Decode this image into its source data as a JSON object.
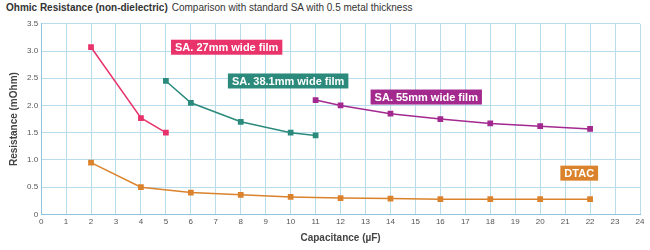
{
  "chart_data": {
    "type": "line",
    "title": "Ohmic Resistance (non-dielectric)",
    "subtitle": "Comparison with standard SA with 0.5 metal thickness",
    "x_label": "Capacitance (µF)",
    "y_label": "Resistance (mOhm)",
    "xlim": [
      0,
      24
    ],
    "xticks": [
      0,
      1,
      2,
      3,
      4,
      5,
      6,
      7,
      8,
      9,
      10,
      11,
      12,
      13,
      14,
      15,
      16,
      17,
      18,
      19,
      20,
      21,
      22,
      23,
      24
    ],
    "ylim": [
      0,
      3.5
    ],
    "yticks": [
      0,
      {
        "value": 0.5,
        "label": "0.5"
      },
      {
        "value": 1,
        "label": "1.0"
      },
      {
        "value": 1.5,
        "label": "1.5"
      },
      {
        "value": 2,
        "label": "2.0"
      },
      {
        "value": 2.5,
        "label": "2.5"
      },
      {
        "value": 3,
        "label": "3.0"
      },
      {
        "value": 3.5,
        "label": "3.5"
      }
    ],
    "grid": true,
    "marker": "square",
    "series": [
      {
        "name": "SA. 27mm wide film",
        "color": "#e8336b",
        "x": [
          2,
          4,
          5
        ],
        "values": [
          3.07,
          1.77,
          1.5
        ]
      },
      {
        "name": "SA. 38.1mm wide film",
        "color": "#2b8a7c",
        "x": [
          5,
          6,
          8,
          10,
          11
        ],
        "values": [
          2.45,
          2.05,
          1.7,
          1.5,
          1.45
        ]
      },
      {
        "name": "SA. 55mm wide film",
        "color": "#a3298e",
        "x": [
          11,
          12,
          14,
          16,
          18,
          20,
          22
        ],
        "values": [
          2.1,
          2.0,
          1.85,
          1.75,
          1.67,
          1.62,
          1.57
        ]
      },
      {
        "name": "DTAC",
        "color": "#db832c",
        "x": [
          2,
          4,
          6,
          8,
          10,
          12,
          14,
          16,
          18,
          20,
          22
        ],
        "values": [
          0.95,
          0.5,
          0.4,
          0.36,
          0.32,
          0.3,
          0.29,
          0.28,
          0.28,
          0.28,
          0.28
        ]
      }
    ]
  }
}
